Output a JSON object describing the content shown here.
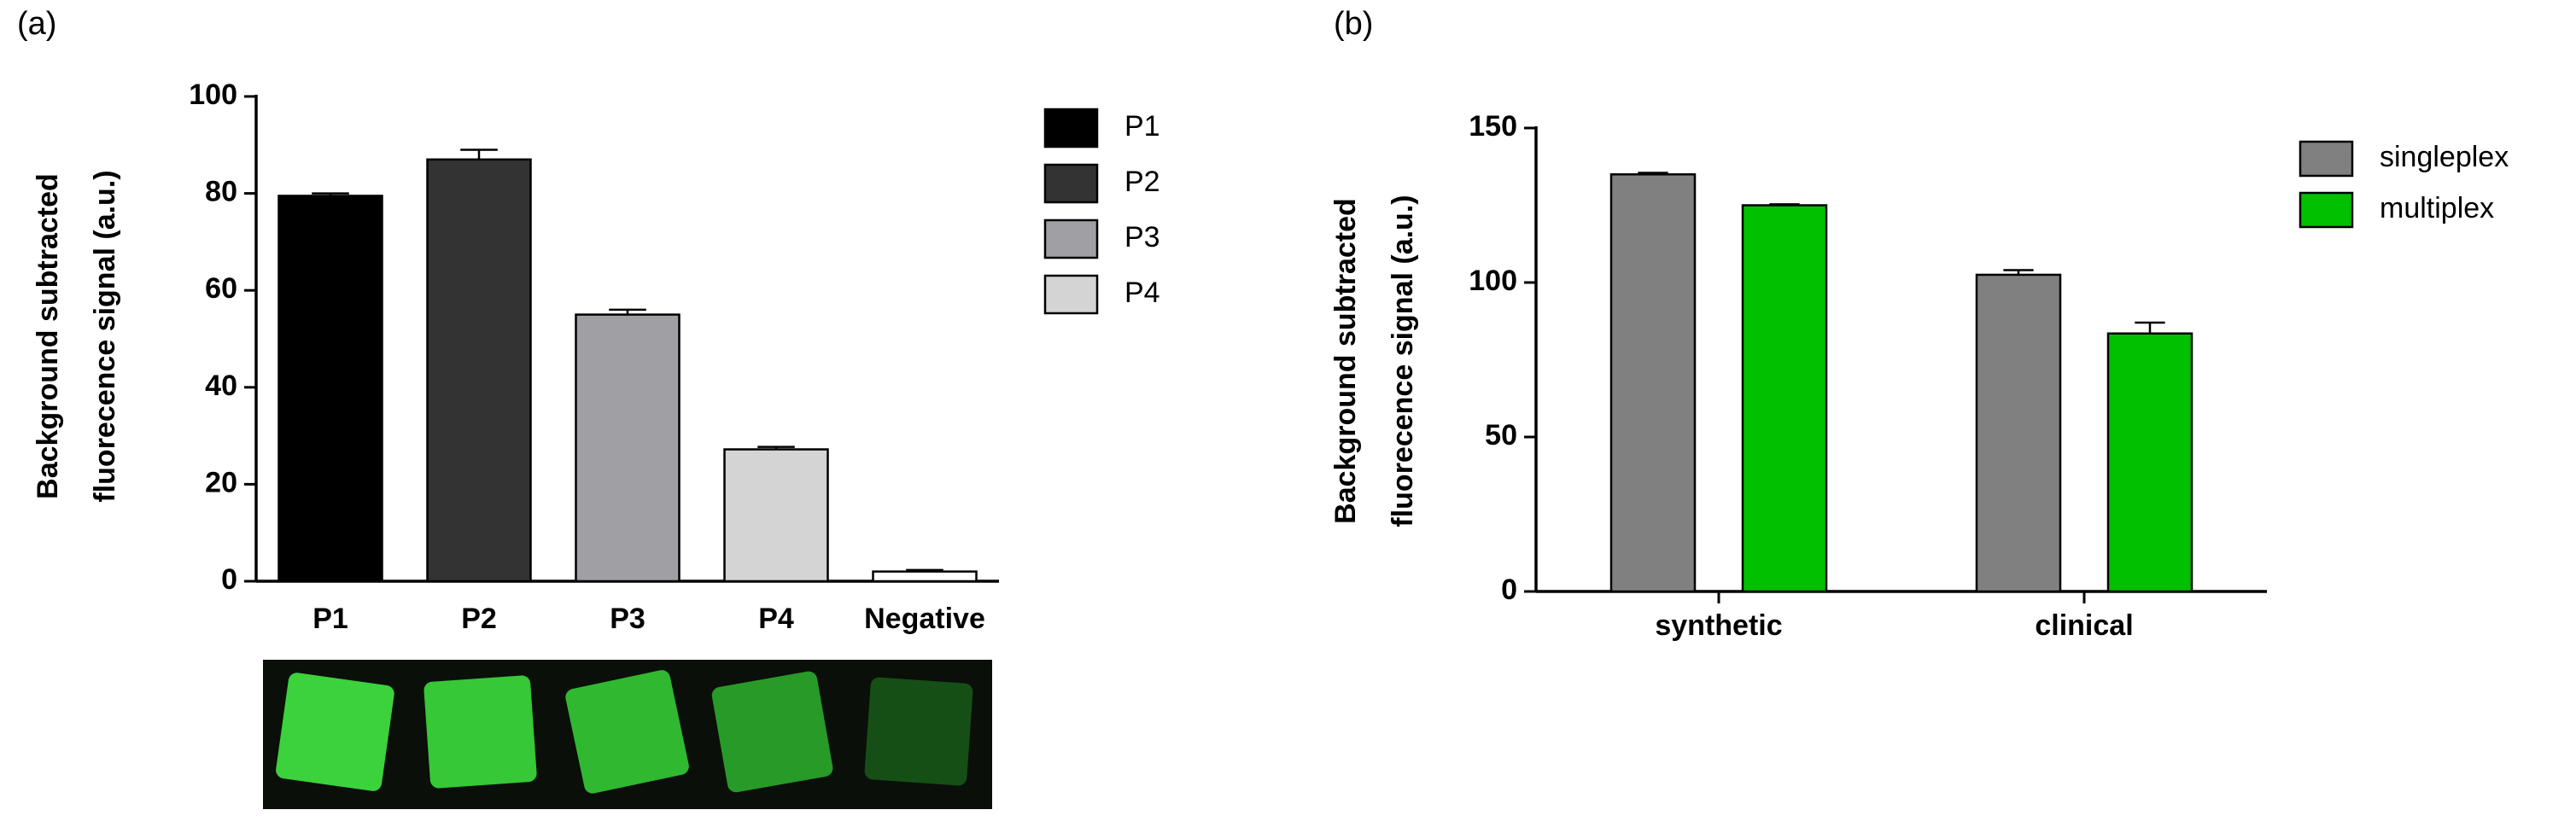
{
  "chart_data": [
    {
      "type": "bar",
      "panel": "(a)",
      "ylabel": [
        "Background subtracted",
        "fluorecence signal (a.u.)"
      ],
      "categories": [
        "P1",
        "P2",
        "P3",
        "P4",
        "Negative"
      ],
      "values": [
        79.5,
        87,
        55,
        27.2,
        2
      ],
      "errors": [
        0.5,
        2,
        1,
        0.5,
        0.3
      ],
      "colors": [
        "#000000",
        "#333333",
        "#a0a0a4",
        "#d4d4d4",
        "#ffffff"
      ],
      "legend": [
        "P1",
        "P2",
        "P3",
        "P4"
      ],
      "ylim": [
        0,
        100
      ],
      "yticks": [
        0,
        20,
        40,
        60,
        80,
        100
      ]
    },
    {
      "type": "bar",
      "panel": "(b)",
      "ylabel": [
        "Background subtracted",
        "fluorecence signal (a.u.)"
      ],
      "categories": [
        "synthetic",
        "clinical"
      ],
      "series": [
        {
          "name": "singleplex",
          "color": "#808080",
          "values": [
            135,
            102.5
          ],
          "errors": [
            0.5,
            1.5
          ]
        },
        {
          "name": "multiplex",
          "color": "#00c000",
          "values": [
            125,
            83.5
          ],
          "errors": [
            0.3,
            3.5
          ]
        }
      ],
      "ylim": [
        0,
        150
      ],
      "yticks": [
        0,
        50,
        100,
        150
      ]
    }
  ]
}
